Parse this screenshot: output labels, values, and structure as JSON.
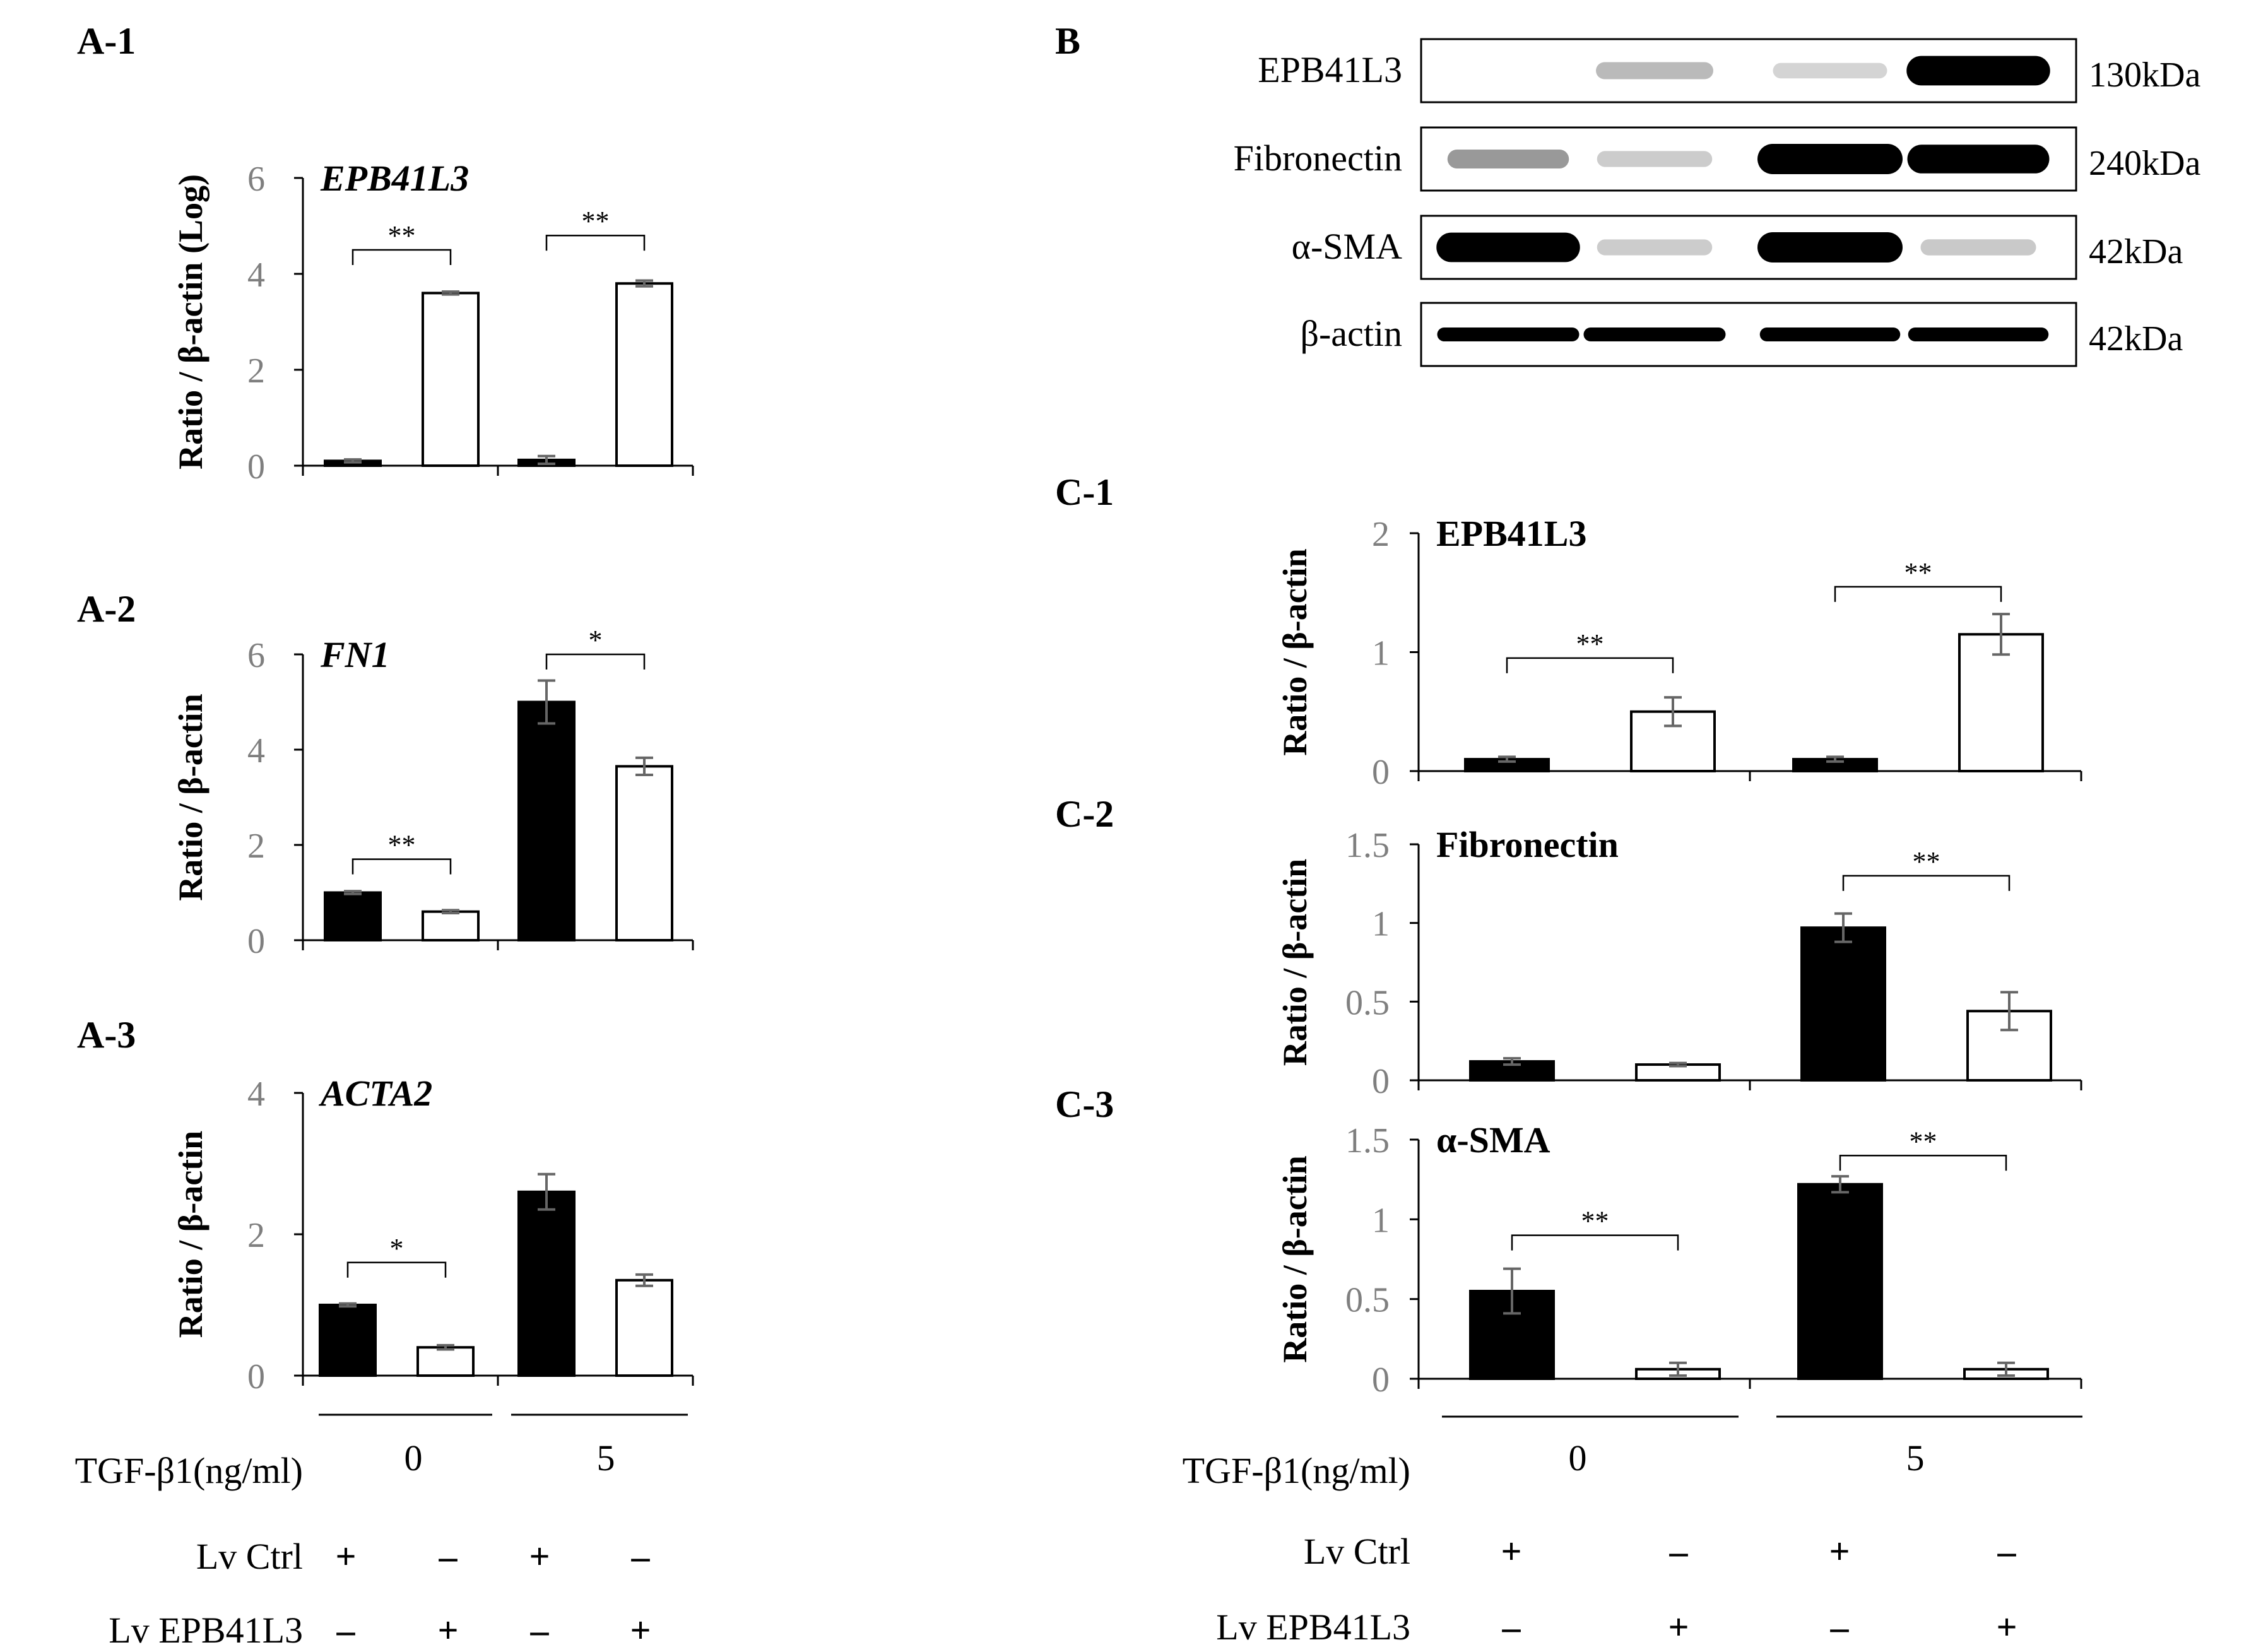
{
  "panel_labels": {
    "a1": "A-1",
    "a2": "A-2",
    "a3": "A-3",
    "b": "B",
    "c1": "C-1",
    "c2": "C-2",
    "c3": "C-3"
  },
  "colors": {
    "filled_bar": "#000000",
    "open_bar": "#ffffff",
    "axis": "#000000",
    "tick_label": "#7f7f7f",
    "error_bar": "#666666"
  },
  "chart_data": [
    {
      "id": "A-1",
      "type": "bar",
      "title": "EPB41L3",
      "title_italic": true,
      "ylabel": "Ratio / β-actin (Log)",
      "ylim": [
        0,
        6
      ],
      "yticks": [
        "0",
        "2",
        "4",
        "6"
      ],
      "groups": [
        "0",
        "5"
      ],
      "bars": [
        {
          "value": 0.1,
          "error": 0.03,
          "fill": "filled"
        },
        {
          "value": 3.6,
          "error": 0.03,
          "fill": "open"
        },
        {
          "value": 0.12,
          "error": 0.08,
          "fill": "filled"
        },
        {
          "value": 3.8,
          "error": 0.06,
          "fill": "open"
        }
      ],
      "significance": [
        {
          "between": [
            0,
            1
          ],
          "label": "**",
          "level": 4.5
        },
        {
          "between": [
            2,
            3
          ],
          "label": "**",
          "level": 4.8
        }
      ]
    },
    {
      "id": "A-2",
      "type": "bar",
      "title": "FN1",
      "title_italic": true,
      "ylabel": "Ratio / β-actin",
      "ylim": [
        0,
        6
      ],
      "yticks": [
        "0",
        "2",
        "4",
        "6"
      ],
      "groups": [
        "0",
        "5"
      ],
      "bars": [
        {
          "value": 1.0,
          "error": 0.03,
          "fill": "filled"
        },
        {
          "value": 0.6,
          "error": 0.03,
          "fill": "open"
        },
        {
          "value": 5.0,
          "error": 0.45,
          "fill": "filled"
        },
        {
          "value": 3.65,
          "error": 0.18,
          "fill": "open"
        }
      ],
      "significance": [
        {
          "between": [
            0,
            1
          ],
          "label": "**",
          "level": 1.7
        },
        {
          "between": [
            2,
            3
          ],
          "label": "*",
          "level": 6.0
        }
      ]
    },
    {
      "id": "A-3",
      "type": "bar",
      "title": "ACTA2",
      "title_italic": true,
      "ylabel": "Ratio / β-actin",
      "ylim": [
        0,
        4
      ],
      "yticks": [
        "0",
        "2",
        "4"
      ],
      "groups": [
        "0",
        "5"
      ],
      "bars": [
        {
          "value": 1.0,
          "error": 0.02,
          "fill": "filled"
        },
        {
          "value": 0.4,
          "error": 0.03,
          "fill": "open"
        },
        {
          "value": 2.6,
          "error": 0.25,
          "fill": "filled"
        },
        {
          "value": 1.35,
          "error": 0.08,
          "fill": "open"
        }
      ],
      "significance": [
        {
          "between": [
            0,
            1
          ],
          "label": "*",
          "level": 1.6
        }
      ]
    },
    {
      "id": "C-1",
      "type": "bar",
      "title": "EPB41L3",
      "title_italic": false,
      "ylabel": "Ratio / β-actin",
      "ylim": [
        0,
        2
      ],
      "yticks": [
        "0",
        "1",
        "2"
      ],
      "groups": [
        "0",
        "5"
      ],
      "bars": [
        {
          "value": 0.1,
          "error": 0.02,
          "fill": "filled"
        },
        {
          "value": 0.5,
          "error": 0.12,
          "fill": "open"
        },
        {
          "value": 0.1,
          "error": 0.02,
          "fill": "filled"
        },
        {
          "value": 1.15,
          "error": 0.17,
          "fill": "open"
        }
      ],
      "significance": [
        {
          "between": [
            0,
            1
          ],
          "label": "**",
          "level": 0.95
        },
        {
          "between": [
            2,
            3
          ],
          "label": "**",
          "level": 1.55
        }
      ]
    },
    {
      "id": "C-2",
      "type": "bar",
      "title": "Fibronectin",
      "title_italic": false,
      "ylabel": "Ratio / β-actin",
      "ylim": [
        0,
        1.5
      ],
      "yticks": [
        "0",
        "0.5",
        "1",
        "1.5"
      ],
      "groups": [
        "0",
        "5"
      ],
      "bars": [
        {
          "value": 0.12,
          "error": 0.02,
          "fill": "filled"
        },
        {
          "value": 0.1,
          "error": 0.01,
          "fill": "open"
        },
        {
          "value": 0.97,
          "error": 0.09,
          "fill": "filled"
        },
        {
          "value": 0.44,
          "error": 0.12,
          "fill": "open"
        }
      ],
      "significance": [
        {
          "between": [
            2,
            3
          ],
          "label": "**",
          "level": 1.3
        }
      ]
    },
    {
      "id": "C-3",
      "type": "bar",
      "title": "α-SMA",
      "title_italic": false,
      "ylabel": "Ratio / β-actin",
      "ylim": [
        0,
        1.5
      ],
      "yticks": [
        "0",
        "0.5",
        "1",
        "1.5"
      ],
      "groups": [
        "0",
        "5"
      ],
      "bars": [
        {
          "value": 0.55,
          "error": 0.14,
          "fill": "filled"
        },
        {
          "value": 0.06,
          "error": 0.04,
          "fill": "open"
        },
        {
          "value": 1.22,
          "error": 0.05,
          "fill": "filled"
        },
        {
          "value": 0.06,
          "error": 0.04,
          "fill": "open"
        }
      ],
      "significance": [
        {
          "between": [
            0,
            1
          ],
          "label": "**",
          "level": 0.9
        },
        {
          "between": [
            2,
            3
          ],
          "label": "**",
          "level": 1.4
        }
      ]
    }
  ],
  "western_blot": {
    "rows": [
      {
        "protein": "EPB41L3",
        "size": "130kDa",
        "intensities": [
          0.0,
          0.12,
          0.02,
          0.95
        ]
      },
      {
        "protein": "Fibronectin",
        "size": "240kDa",
        "intensities": [
          0.25,
          0.05,
          1.0,
          0.9
        ]
      },
      {
        "protein": "α-SMA",
        "size": "42kDa",
        "intensities": [
          0.95,
          0.05,
          1.0,
          0.06
        ]
      },
      {
        "protein": "β-actin",
        "size": "42kDa",
        "intensities": [
          0.9,
          0.9,
          0.85,
          0.85
        ]
      }
    ]
  },
  "treatment_tables": {
    "left": {
      "tgf_label": "TGF-β1(ng/ml)",
      "doses": [
        "0",
        "5"
      ],
      "lv_ctrl_label": "Lv Ctrl",
      "lv_epb_label": "Lv EPB41L3",
      "lv_ctrl": [
        "+",
        "–",
        "+",
        "–"
      ],
      "lv_epb": [
        "–",
        "+",
        "–",
        "+"
      ]
    },
    "right": {
      "tgf_label": "TGF-β1(ng/ml)",
      "doses": [
        "0",
        "5"
      ],
      "lv_ctrl_label": "Lv Ctrl",
      "lv_epb_label": "Lv EPB41L3",
      "lv_ctrl": [
        "+",
        "–",
        "+",
        "–"
      ],
      "lv_epb": [
        "–",
        "+",
        "–",
        "+"
      ]
    }
  }
}
